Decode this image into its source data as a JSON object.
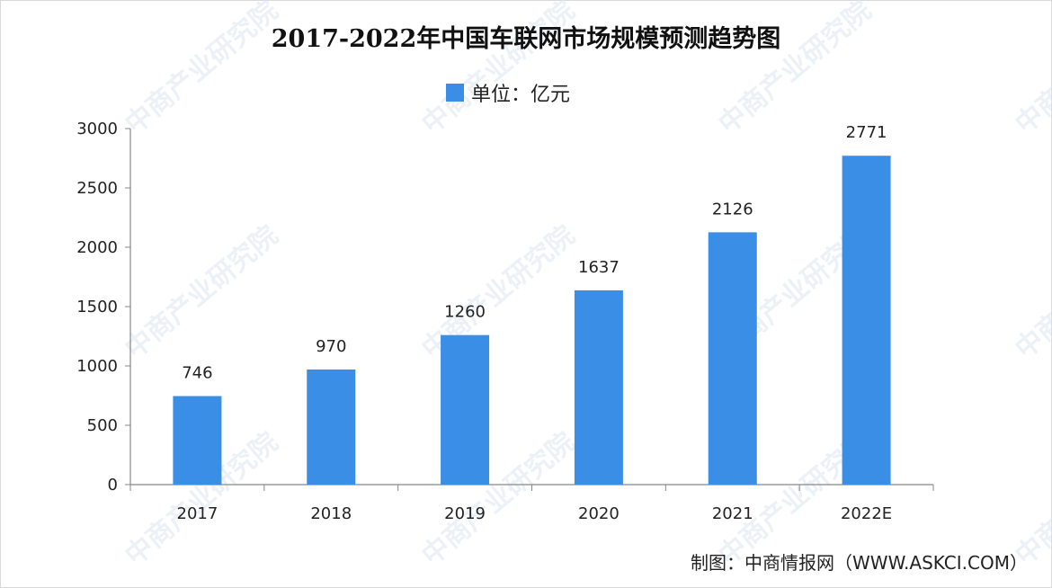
{
  "watermark": {
    "text": "中商产业研究院"
  },
  "source": "制图：中商情报网（WWW.ASKCI.COM）",
  "colors": {
    "bar": "#3a8ee6",
    "axis": "#888888"
  },
  "chart_data": {
    "type": "bar",
    "title": "2017-2022年中国车联网市场规模预测趋势图",
    "categories": [
      "2017",
      "2018",
      "2019",
      "2020",
      "2021",
      "2022E"
    ],
    "series": [
      {
        "name": "单位：亿元",
        "values": [
          746,
          970,
          1260,
          1637,
          2126,
          2771
        ]
      }
    ],
    "ylim": [
      0,
      3000
    ],
    "yticks": [
      0,
      500,
      1000,
      1500,
      2000,
      2500,
      3000
    ],
    "xlabel": "",
    "ylabel": "",
    "legend": "top-center",
    "grid": false
  }
}
